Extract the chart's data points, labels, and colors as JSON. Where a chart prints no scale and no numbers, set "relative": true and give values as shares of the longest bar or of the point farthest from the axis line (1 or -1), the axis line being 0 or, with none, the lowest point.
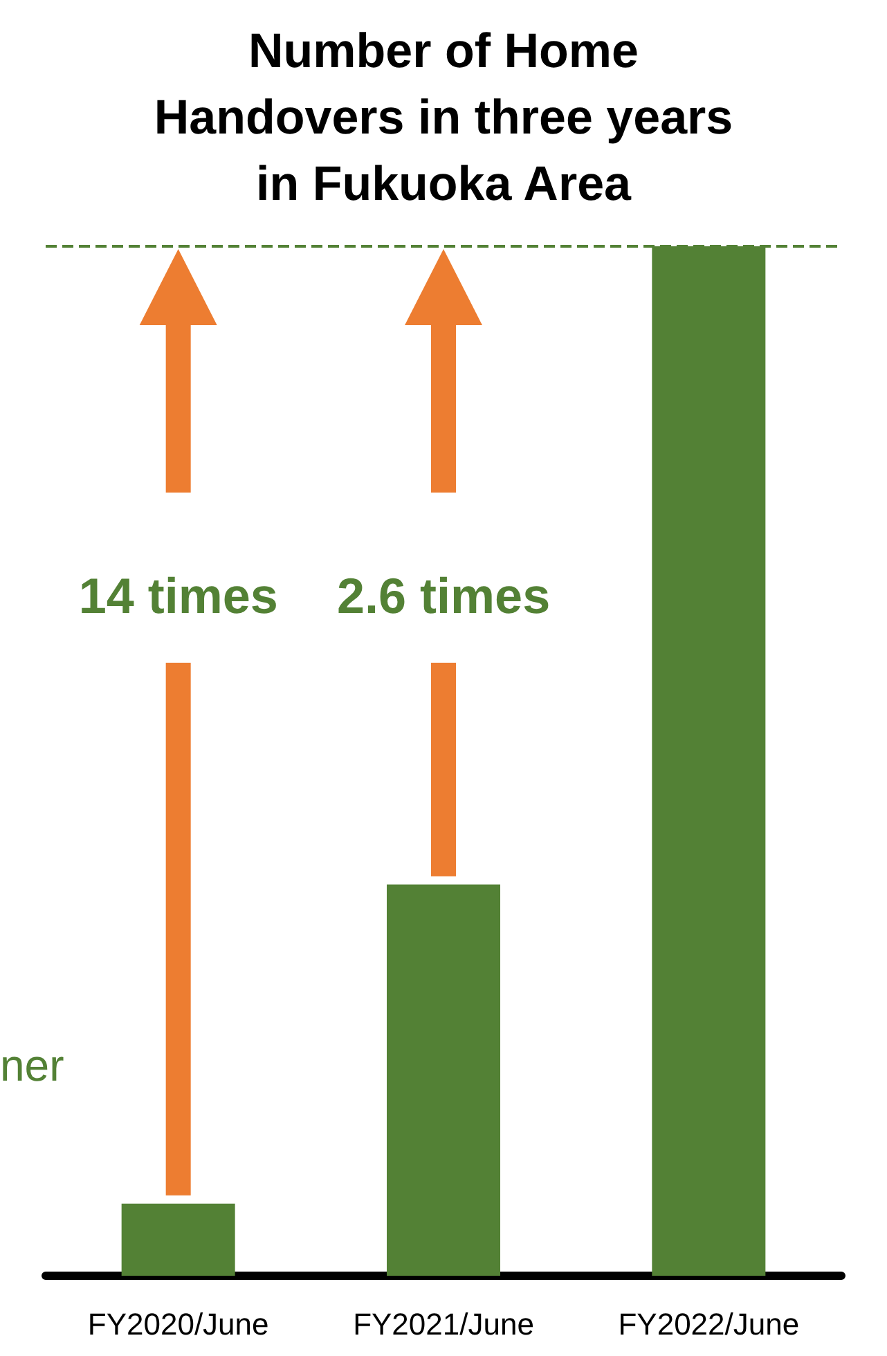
{
  "chart_data": {
    "type": "bar",
    "title": "Number of Home\nHandovers in three years\nin Fukuoka Area",
    "categories": [
      "FY2020/June",
      "FY2021/June",
      "FY2022/June"
    ],
    "values": [
      0.07,
      0.38,
      1
    ],
    "color": "#538135",
    "relative": true,
    "ref_lines": [
      {
        "axis": "y",
        "value": 1,
        "color": "#538135",
        "line_style": "dashed"
      }
    ],
    "annotations": [
      "14 times",
      "2.6 times",
      "ner"
    ],
    "grid": false
  }
}
